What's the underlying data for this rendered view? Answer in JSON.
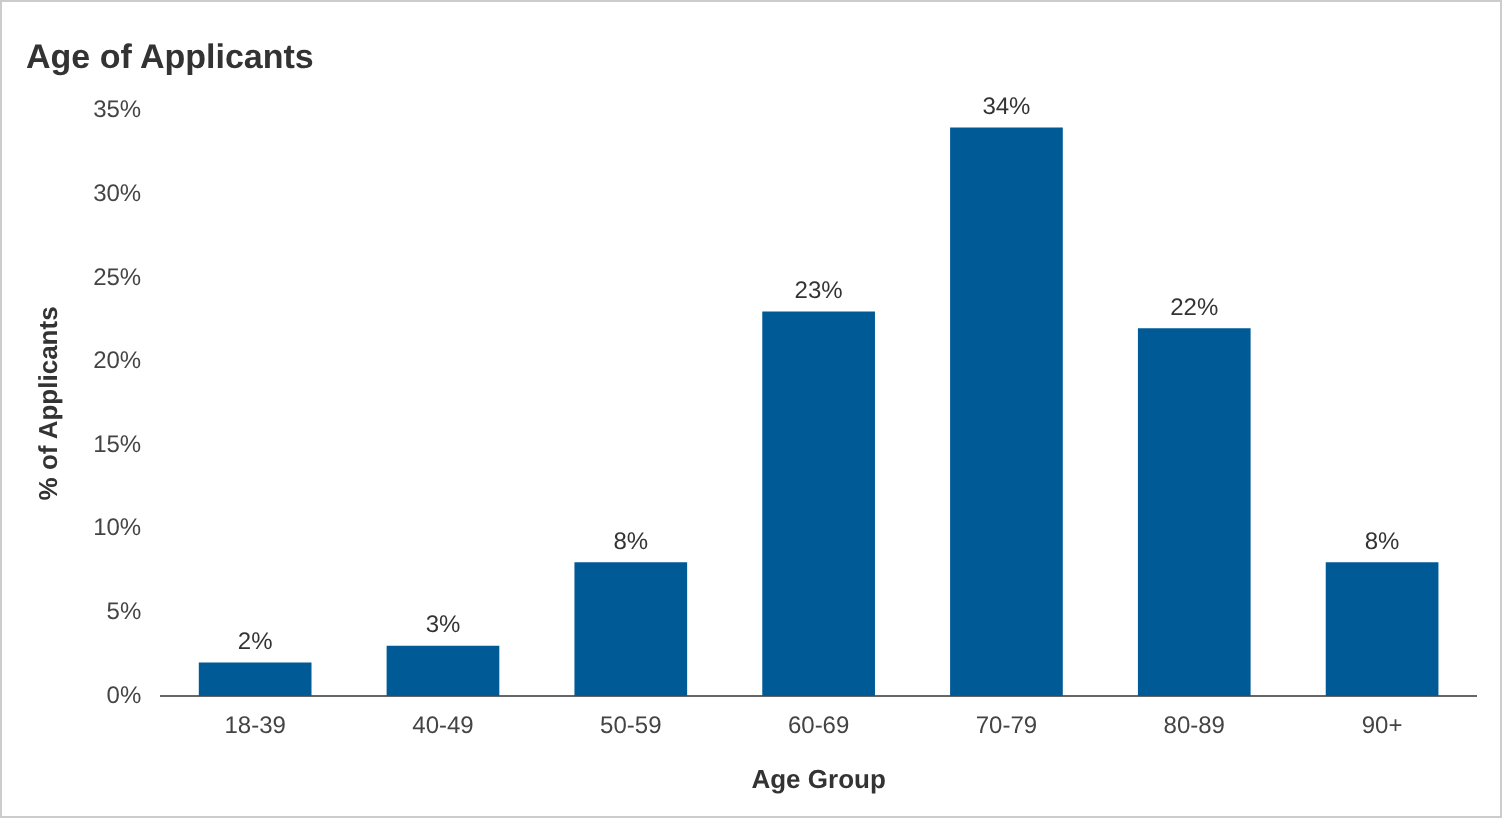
{
  "chart_data": {
    "type": "bar",
    "title": "Age of Applicants",
    "xlabel": "Age Group",
    "ylabel": "% of Applicants",
    "categories": [
      "18-39",
      "40-49",
      "50-59",
      "60-69",
      "70-79",
      "80-89",
      "90+"
    ],
    "values": [
      2,
      3,
      8,
      23,
      34,
      22,
      8
    ],
    "color": "#005a96",
    "value_labels": [
      "2%",
      "3%",
      "8%",
      "23%",
      "34%",
      "22%",
      "8%"
    ],
    "ylim": [
      0,
      35
    ],
    "yticks": [
      {
        "value": 0,
        "label": "0%"
      },
      {
        "value": 5,
        "label": "5%"
      },
      {
        "value": 10,
        "label": "10%"
      },
      {
        "value": 15,
        "label": "15%"
      },
      {
        "value": 20,
        "label": "20%"
      },
      {
        "value": 25,
        "label": "25%"
      },
      {
        "value": 30,
        "label": "30%"
      },
      {
        "value": 35,
        "label": "35%"
      }
    ],
    "grid": false,
    "legend": false
  }
}
